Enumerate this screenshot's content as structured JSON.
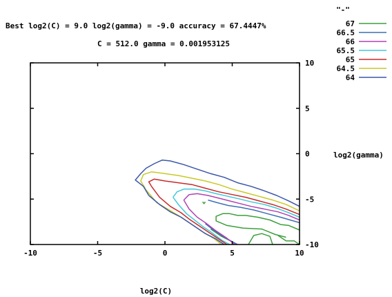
{
  "chart_data": {
    "type": "line",
    "title": "Best log2(C) = 9.0  log2(gamma) = -9.0  accuracy = 67.4447%",
    "subtitle": "C = 512.0  gamma = 0.001953125",
    "xlabel": "log2(C)",
    "ylabel": "log2(gamma)",
    "xlim": [
      -10,
      10
    ],
    "ylim": [
      10,
      -10
    ],
    "x_ticks": [
      -10,
      -5,
      0,
      5,
      10
    ],
    "y_ticks": [
      -10,
      -5,
      0,
      5,
      10
    ],
    "x_tick_labels": [
      "-10",
      "-5",
      "0",
      "5",
      "10"
    ],
    "y_tick_labels": [
      "-10",
      "-5",
      "0",
      "5",
      "10"
    ],
    "legend_title": "\"-\"",
    "legend_position": "top-right",
    "grid": false,
    "series": [
      {
        "name": "67",
        "color": "#3a9f3a",
        "paths": [
          [
            [
              3.4,
              -8.3
            ],
            [
              4.2,
              -9.1
            ],
            [
              5.0,
              -9.7
            ]
          ],
          [
            [
              6.2,
              -10
            ],
            [
              6.6,
              -9.0
            ],
            [
              7.2,
              -8.8
            ],
            [
              7.8,
              -9.1
            ],
            [
              8.0,
              -10
            ]
          ],
          [
            [
              8.4,
              -9.0
            ],
            [
              9.0,
              -9.6
            ],
            [
              9.6,
              -9.6
            ],
            [
              10,
              -10
            ]
          ],
          [
            [
              10,
              -8.4
            ],
            [
              9.2,
              -7.9
            ],
            [
              8.6,
              -7.8
            ],
            [
              7.8,
              -7.3
            ],
            [
              6.9,
              -7.0
            ],
            [
              6.0,
              -6.8
            ],
            [
              5.4,
              -6.8
            ],
            [
              4.8,
              -6.6
            ],
            [
              4.3,
              -6.6
            ],
            [
              3.8,
              -6.9
            ],
            [
              3.8,
              -7.4
            ],
            [
              4.6,
              -7.9
            ],
            [
              5.8,
              -8.2
            ],
            [
              7.2,
              -8.3
            ],
            [
              8.2,
              -8.9
            ],
            [
              9.0,
              -9.2
            ]
          ],
          [
            [
              2.8,
              -5.3
            ],
            [
              2.9,
              -5.5
            ],
            [
              3.0,
              -5.3
            ]
          ]
        ]
      },
      {
        "name": "66.5",
        "color": "#3c6fb4",
        "paths": [
          [
            [
              3.0,
              -7.7
            ],
            [
              3.6,
              -8.4
            ],
            [
              4.4,
              -9.2
            ],
            [
              5.4,
              -10
            ]
          ],
          [
            [
              10,
              -7.6
            ],
            [
              9.3,
              -7.3
            ],
            [
              8.6,
              -7.0
            ],
            [
              7.6,
              -6.6
            ],
            [
              6.6,
              -6.2
            ],
            [
              5.6,
              -5.9
            ],
            [
              4.7,
              -5.7
            ],
            [
              3.9,
              -5.4
            ],
            [
              3.2,
              -5.1
            ]
          ]
        ]
      },
      {
        "name": "66",
        "color": "#b040b4",
        "paths": [
          [
            [
              1.4,
              -5.1
            ],
            [
              1.8,
              -6.1
            ],
            [
              2.4,
              -7.0
            ],
            [
              3.0,
              -7.6
            ],
            [
              3.8,
              -8.5
            ],
            [
              4.6,
              -9.3
            ],
            [
              5.2,
              -10
            ]
          ],
          [
            [
              10,
              -7.3
            ],
            [
              9.2,
              -6.8
            ],
            [
              8.4,
              -6.4
            ],
            [
              7.4,
              -6.1
            ],
            [
              6.4,
              -5.8
            ],
            [
              5.6,
              -5.5
            ],
            [
              4.8,
              -5.2
            ],
            [
              4.0,
              -4.9
            ],
            [
              3.2,
              -4.6
            ],
            [
              2.4,
              -4.4
            ],
            [
              1.8,
              -4.5
            ],
            [
              1.4,
              -5.1
            ]
          ]
        ]
      },
      {
        "name": "65.5",
        "color": "#40c8d8",
        "paths": [
          [
            [
              0.6,
              -4.8
            ],
            [
              1.0,
              -5.6
            ],
            [
              1.6,
              -6.6
            ],
            [
              2.2,
              -7.3
            ],
            [
              2.8,
              -8.0
            ],
            [
              3.4,
              -8.6
            ],
            [
              4.2,
              -9.5
            ],
            [
              4.8,
              -10
            ]
          ],
          [
            [
              10,
              -7.0
            ],
            [
              9.2,
              -6.5
            ],
            [
              8.3,
              -6.0
            ],
            [
              7.4,
              -5.6
            ],
            [
              6.4,
              -5.3
            ],
            [
              5.6,
              -5.0
            ],
            [
              4.7,
              -4.7
            ],
            [
              3.8,
              -4.4
            ],
            [
              3.0,
              -4.1
            ],
            [
              2.2,
              -3.9
            ],
            [
              1.4,
              -3.9
            ],
            [
              0.9,
              -4.2
            ],
            [
              0.6,
              -4.8
            ]
          ]
        ]
      },
      {
        "name": "65",
        "color": "#c82828",
        "paths": [
          [
            [
              -1.0,
              -3.6
            ],
            [
              -0.4,
              -4.8
            ],
            [
              0.4,
              -5.8
            ],
            [
              1.2,
              -6.5
            ],
            [
              1.8,
              -7.2
            ],
            [
              2.4,
              -7.8
            ],
            [
              3.0,
              -8.4
            ],
            [
              3.6,
              -9.0
            ],
            [
              4.4,
              -9.8
            ],
            [
              4.6,
              -10
            ]
          ],
          [
            [
              10,
              -6.7
            ],
            [
              9.0,
              -6.1
            ],
            [
              8.0,
              -5.6
            ],
            [
              7.0,
              -5.2
            ],
            [
              6.0,
              -4.8
            ],
            [
              5.0,
              -4.5
            ],
            [
              4.0,
              -4.2
            ],
            [
              3.0,
              -3.8
            ],
            [
              2.0,
              -3.4
            ],
            [
              1.0,
              -3.2
            ],
            [
              0.0,
              -3.0
            ],
            [
              -0.8,
              -2.8
            ],
            [
              -1.2,
              -3.1
            ],
            [
              -1.0,
              -3.6
            ]
          ]
        ]
      },
      {
        "name": "64.5",
        "color": "#c8c828",
        "paths": [
          [
            [
              -1.4,
              -4.0
            ],
            [
              -0.6,
              -5.4
            ],
            [
              0.2,
              -6.1
            ],
            [
              1.0,
              -6.8
            ],
            [
              1.6,
              -7.4
            ],
            [
              2.2,
              -8.0
            ],
            [
              2.8,
              -8.6
            ],
            [
              3.6,
              -9.3
            ],
            [
              4.2,
              -10
            ]
          ],
          [
            [
              10,
              -6.3
            ],
            [
              9.0,
              -5.6
            ],
            [
              8.0,
              -5.1
            ],
            [
              7.0,
              -4.7
            ],
            [
              6.0,
              -4.3
            ],
            [
              5.0,
              -3.9
            ],
            [
              4.0,
              -3.4
            ],
            [
              3.0,
              -3.0
            ],
            [
              2.0,
              -2.7
            ],
            [
              1.0,
              -2.4
            ],
            [
              0.0,
              -2.2
            ],
            [
              -1.0,
              -2.0
            ],
            [
              -1.6,
              -2.3
            ],
            [
              -1.8,
              -3.0
            ],
            [
              -1.4,
              -4.0
            ]
          ]
        ]
      },
      {
        "name": "64",
        "color": "#3a56a8",
        "paths": [
          [
            [
              -1.2,
              -4.6
            ],
            [
              -0.4,
              -5.6
            ],
            [
              0.4,
              -6.4
            ],
            [
              1.2,
              -7.0
            ],
            [
              1.8,
              -7.6
            ],
            [
              2.4,
              -8.2
            ],
            [
              3.0,
              -8.8
            ],
            [
              3.8,
              -9.4
            ],
            [
              4.4,
              -10
            ]
          ],
          [
            [
              10,
              -5.8
            ],
            [
              9.2,
              -5.2
            ],
            [
              8.3,
              -4.6
            ],
            [
              7.4,
              -4.1
            ],
            [
              6.4,
              -3.6
            ],
            [
              5.4,
              -3.2
            ],
            [
              4.4,
              -2.6
            ],
            [
              3.4,
              -2.2
            ],
            [
              2.4,
              -1.7
            ],
            [
              1.4,
              -1.2
            ],
            [
              0.4,
              -0.8
            ],
            [
              -0.2,
              -0.7
            ],
            [
              -0.8,
              -1.1
            ],
            [
              -1.4,
              -1.6
            ],
            [
              -1.8,
              -2.2
            ],
            [
              -2.2,
              -2.9
            ],
            [
              -1.6,
              -3.6
            ],
            [
              -1.2,
              -4.6
            ]
          ]
        ]
      }
    ]
  }
}
